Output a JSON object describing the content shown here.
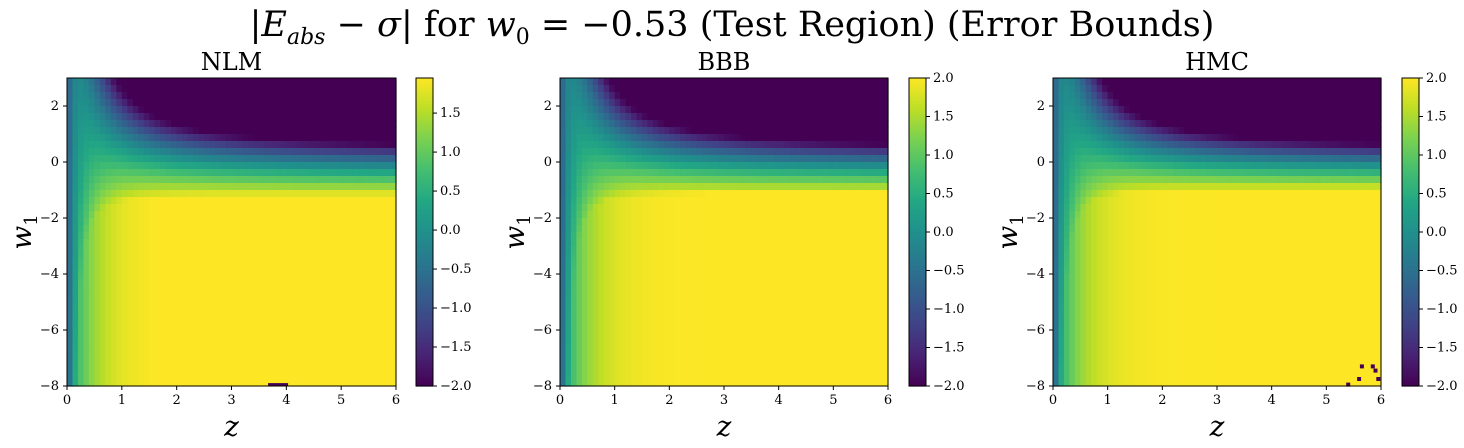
{
  "title_parts": {
    "bar1": "|",
    "E": "E",
    "abs": "abs",
    "minus": " − ",
    "sigma": "σ",
    "bar2": "|",
    "for": " for ",
    "w": "w",
    "w_sub": "0",
    "eq": " = −0.53 (Test Region) (Error Bounds)"
  },
  "chart_data": [
    {
      "type": "heatmap",
      "title": "NLM",
      "xlabel": "z",
      "ylabel": "w1",
      "xlim": [
        0,
        6
      ],
      "ylim": [
        -8,
        3
      ],
      "xticks": [
        0,
        1,
        2,
        3,
        4,
        5,
        6
      ],
      "yticks": [
        2,
        0,
        -2,
        -4,
        -6,
        -8
      ],
      "colorbar": {
        "min": -2.0,
        "max": 1.95,
        "ticks": [
          "1.5",
          "1.0",
          "0.5",
          "0.0",
          "−0.5",
          "−1.0",
          "−1.5",
          "−2.0"
        ],
        "colormap": "viridis"
      },
      "anomalies": [
        {
          "z": 3.85,
          "w1": -7.95,
          "value": -2.0
        }
      ]
    },
    {
      "type": "heatmap",
      "title": "BBB",
      "xlabel": "z",
      "ylabel": "w1",
      "xlim": [
        0,
        6
      ],
      "ylim": [
        -8,
        3
      ],
      "xticks": [
        0,
        1,
        2,
        3,
        4,
        5,
        6
      ],
      "yticks": [
        2,
        0,
        -2,
        -4,
        -6,
        -8
      ],
      "colorbar": {
        "min": -2.0,
        "max": 2.0,
        "ticks": [
          "2.0",
          "1.5",
          "1.0",
          "0.5",
          "0.0",
          "−0.5",
          "−1.0",
          "−1.5",
          "−2.0"
        ],
        "colormap": "viridis"
      },
      "anomalies": []
    },
    {
      "type": "heatmap",
      "title": "HMC",
      "xlabel": "z",
      "ylabel": "w1",
      "xlim": [
        0,
        6
      ],
      "ylim": [
        -8,
        3
      ],
      "xticks": [
        0,
        1,
        2,
        3,
        4,
        5,
        6
      ],
      "yticks": [
        2,
        0,
        -2,
        -4,
        -6,
        -8
      ],
      "colorbar": {
        "min": -2.0,
        "max": 2.0,
        "ticks": [
          "2.0",
          "1.5",
          "1.0",
          "0.5",
          "0.0",
          "−0.5",
          "−1.0",
          "−1.5",
          "−2.0"
        ],
        "colormap": "viridis"
      },
      "anomalies": [
        {
          "z": 5.65,
          "w1": -7.3,
          "value": -2.0
        },
        {
          "z": 5.85,
          "w1": -7.3,
          "value": -2.0
        },
        {
          "z": 5.9,
          "w1": -7.45,
          "value": -2.0
        },
        {
          "z": 5.6,
          "w1": -7.75,
          "value": -2.0
        },
        {
          "z": 5.95,
          "w1": -7.75,
          "value": -2.0
        },
        {
          "z": 5.4,
          "w1": -7.95,
          "value": -2.0
        }
      ]
    }
  ]
}
